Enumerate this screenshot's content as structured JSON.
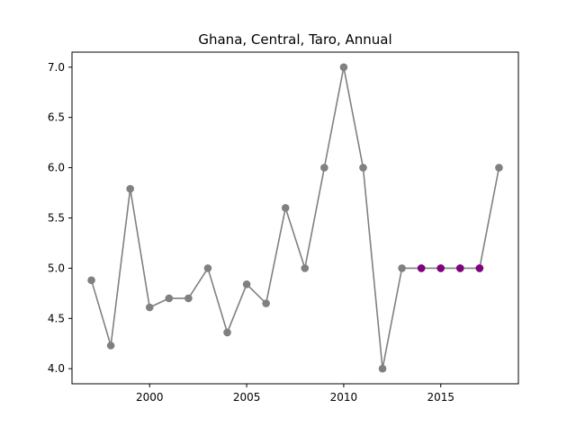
{
  "chart_data": {
    "type": "line",
    "title": "Ghana, Central, Taro, Annual",
    "xlabel": "",
    "ylabel": "",
    "xlim": [
      1996,
      2019
    ],
    "ylim": [
      3.85,
      7.15
    ],
    "xticks": [
      2000,
      2005,
      2010,
      2015
    ],
    "yticks": [
      4.0,
      4.5,
      5.0,
      5.5,
      6.0,
      6.5,
      7.0
    ],
    "xtick_labels": [
      "2000",
      "2005",
      "2010",
      "2015"
    ],
    "ytick_labels": [
      "4.0",
      "4.5",
      "5.0",
      "5.5",
      "6.0",
      "6.5",
      "7.0"
    ],
    "grid": false,
    "series": [
      {
        "x": [
          1997,
          1998,
          1999,
          2000,
          2001,
          2002,
          2003,
          2004,
          2005,
          2006,
          2007,
          2008,
          2009,
          2010,
          2011,
          2012,
          2013,
          2014,
          2015,
          2016,
          2017,
          2018
        ],
        "values": [
          4.88,
          4.23,
          5.79,
          4.61,
          4.7,
          4.7,
          5.0,
          4.36,
          4.84,
          4.65,
          5.6,
          5.0,
          6.0,
          7.0,
          6.0,
          4.0,
          5.0,
          5.0,
          5.0,
          5.0,
          5.0,
          6.0
        ],
        "line_color": "#808080",
        "marker_color": "#808080"
      }
    ],
    "highlight_points": {
      "x": [
        2014,
        2015,
        2016,
        2017
      ],
      "values": [
        5.0,
        5.0,
        5.0,
        5.0
      ],
      "color": "#800080"
    }
  }
}
